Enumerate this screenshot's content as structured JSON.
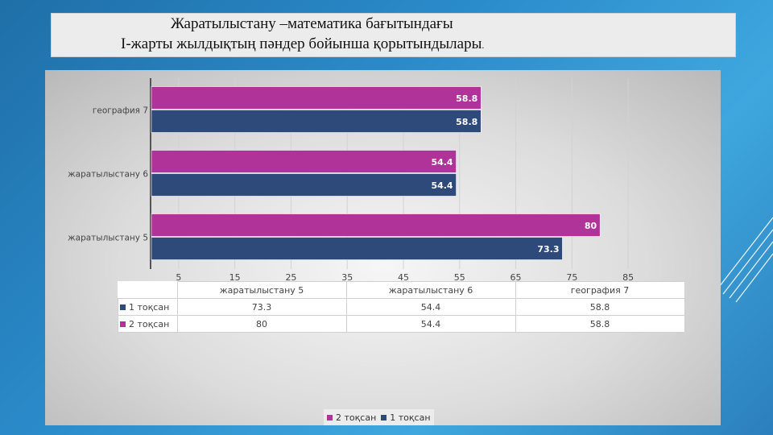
{
  "title": {
    "line1": "Жаратылыстану –математика бағытындағы",
    "line2": "І-жарты жылдықтың пәндер бойынша қорытындылары",
    "line2_tail": "."
  },
  "colors": {
    "series1": "#2e4a7b",
    "series2": "#b0339a"
  },
  "chart_data": {
    "type": "bar",
    "orientation": "horizontal",
    "categories": [
      "жаратылыстану 5",
      "жаратылыстану 6",
      "география 7"
    ],
    "series": [
      {
        "name": "1 тоқсан",
        "values": [
          73.3,
          54.4,
          58.8
        ]
      },
      {
        "name": "2 тоқсан",
        "values": [
          80,
          54.4,
          58.8
        ]
      }
    ],
    "x_ticks": [
      "5",
      "15",
      "25",
      "35",
      "45",
      "55",
      "65",
      "75",
      "85"
    ],
    "xlim": [
      0,
      90
    ],
    "grid": true,
    "legend_placement": "bottom",
    "data_labels": true,
    "data_table": true
  },
  "legend": {
    "items": [
      {
        "label": "2 тоқсан"
      },
      {
        "label": "1  тоқсан"
      }
    ]
  }
}
